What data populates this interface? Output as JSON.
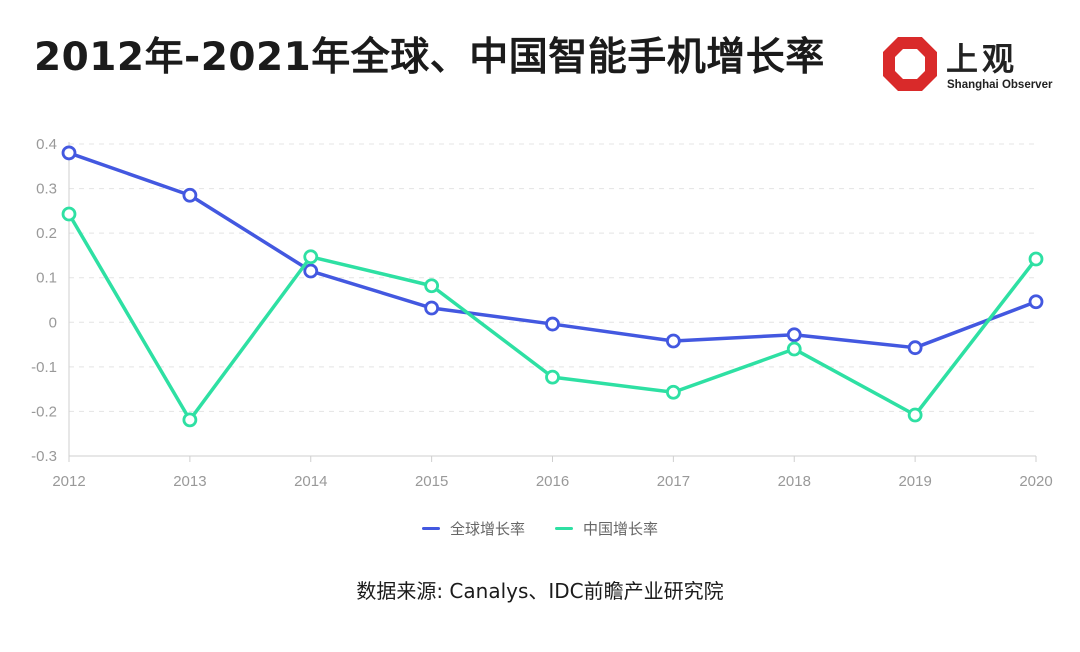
{
  "title": "2012年-2021年全球、中国智能手机增长率",
  "logo": {
    "name_cn": "上观",
    "name_en": "Shanghai Observer",
    "brand_color": "#d92a2a"
  },
  "source": "数据来源: Canalys、IDC前瞻产业研究院",
  "chart_data": {
    "type": "line",
    "categories": [
      "2012",
      "2013",
      "2014",
      "2015",
      "2016",
      "2017",
      "2018",
      "2019",
      "2020"
    ],
    "ylim": [
      -0.3,
      0.4
    ],
    "yticks": [
      0.4,
      0.3,
      0.2,
      0.1,
      0,
      -0.1,
      -0.2,
      -0.3
    ],
    "ytick_labels": [
      "0.4",
      "0.3",
      "0.2",
      "0.1",
      "0",
      "-0.1",
      "-0.2",
      "-0.3"
    ],
    "grid": true,
    "legend_position": "bottom-center",
    "series": [
      {
        "name": "全球增长率",
        "color": "#4358e0",
        "values": [
          0.38,
          0.285,
          0.115,
          0.032,
          -0.004,
          -0.042,
          -0.028,
          -0.057,
          0.046
        ]
      },
      {
        "name": "中国增长率",
        "color": "#2ee0a3",
        "values": [
          0.243,
          -0.219,
          0.147,
          0.082,
          -0.123,
          -0.157,
          -0.06,
          -0.208,
          0.142
        ]
      }
    ]
  }
}
